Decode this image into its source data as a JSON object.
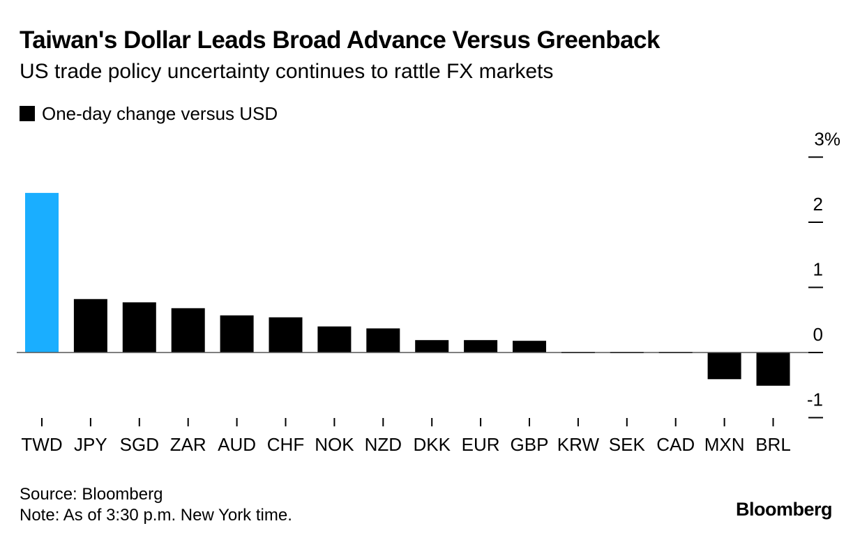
{
  "header": {
    "title": "Taiwan's Dollar Leads Broad Advance Versus Greenback",
    "subtitle": "US trade policy uncertainty continues to rattle FX markets"
  },
  "footer": {
    "source": "Source: Bloomberg",
    "note": "Note: As of 3:30 p.m. New York time.",
    "brand": "Bloomberg"
  },
  "colors": {
    "highlight": "#1aaeff",
    "default": "#000000"
  },
  "chart_data": {
    "type": "bar",
    "title": "Taiwan's Dollar Leads Broad Advance Versus Greenback",
    "subtitle": "US trade policy uncertainty continues to rattle FX markets",
    "xlabel": "",
    "ylabel": "",
    "categories": [
      "TWD",
      "JPY",
      "SGD",
      "ZAR",
      "AUD",
      "CHF",
      "NOK",
      "NZD",
      "DKK",
      "EUR",
      "GBP",
      "KRW",
      "SEK",
      "CAD",
      "MXN",
      "BRL"
    ],
    "series": [
      {
        "name": "One-day change versus USD",
        "values": [
          2.45,
          0.82,
          0.77,
          0.68,
          0.57,
          0.54,
          0.4,
          0.37,
          0.19,
          0.19,
          0.18,
          -0.01,
          -0.01,
          -0.01,
          -0.41,
          -0.51
        ]
      }
    ],
    "highlight_category": "TWD",
    "ylim": [
      -1,
      3
    ],
    "yticks": [
      {
        "value": 3,
        "label": "3%"
      },
      {
        "value": 2,
        "label": "2"
      },
      {
        "value": 1,
        "label": "1"
      },
      {
        "value": 0,
        "label": "0"
      },
      {
        "value": -1,
        "label": "-1"
      }
    ],
    "y_axis_side": "right",
    "grid": false,
    "legend": "top-left"
  }
}
